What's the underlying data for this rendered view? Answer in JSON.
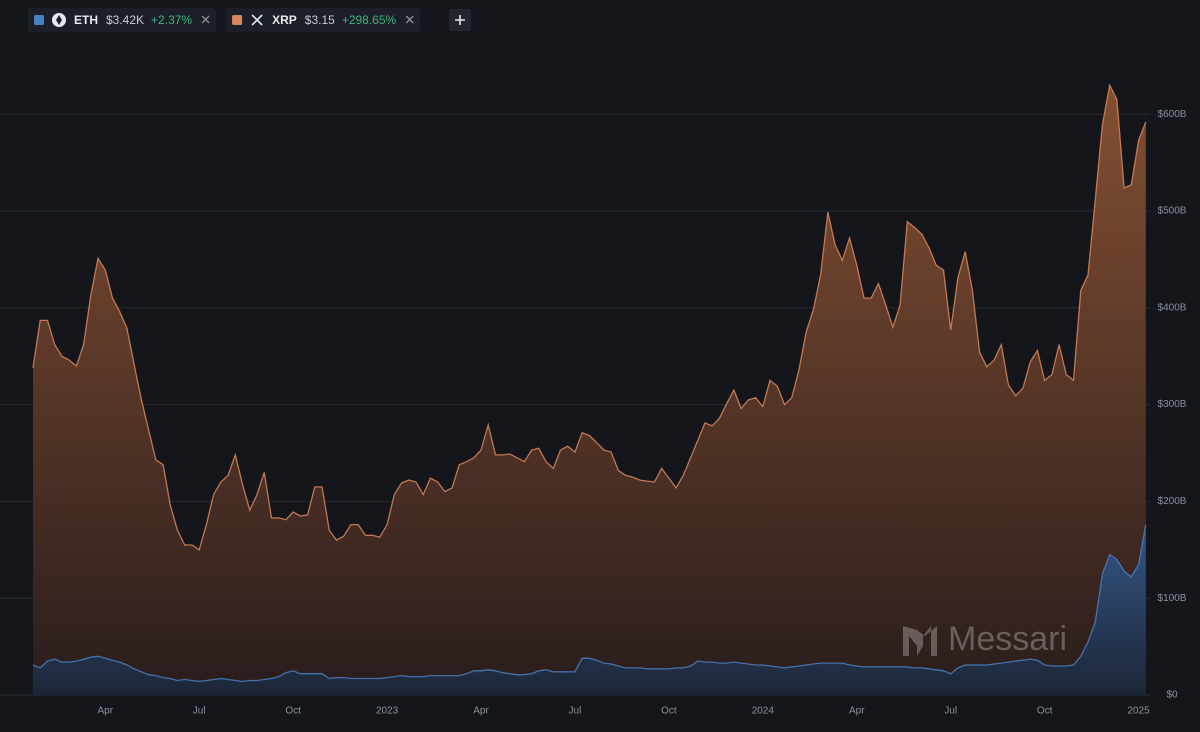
{
  "chart_data": {
    "type": "area",
    "watermark": "Messari",
    "categories": [
      null,
      null,
      null,
      null,
      null,
      null,
      null,
      null,
      null,
      null,
      "Apr",
      null,
      null,
      null,
      null,
      null,
      null,
      null,
      null,
      null,
      null,
      null,
      null,
      "Jul",
      null,
      null,
      null,
      null,
      null,
      null,
      null,
      null,
      null,
      null,
      null,
      null,
      "Oct",
      null,
      null,
      null,
      null,
      null,
      null,
      null,
      null,
      null,
      null,
      null,
      null,
      "2023",
      null,
      null,
      null,
      null,
      null,
      null,
      null,
      null,
      null,
      null,
      null,
      null,
      "Apr",
      null,
      null,
      null,
      null,
      null,
      null,
      null,
      null,
      null,
      null,
      null,
      null,
      "Jul",
      null,
      null,
      null,
      null,
      null,
      null,
      null,
      null,
      null,
      null,
      null,
      null,
      "Oct",
      null,
      null,
      null,
      null,
      null,
      null,
      null,
      null,
      null,
      null,
      null,
      null,
      "2024",
      null,
      null,
      null,
      null,
      null,
      null,
      null,
      null,
      null,
      null,
      null,
      null,
      "Apr",
      null,
      null,
      null,
      null,
      null,
      null,
      null,
      null,
      null,
      null,
      null,
      null,
      "Jul",
      null,
      null,
      null,
      null,
      null,
      null,
      null,
      null,
      null,
      null,
      null,
      null,
      "Oct",
      null,
      null,
      null,
      null,
      null,
      null,
      null,
      null,
      null,
      null,
      null,
      null,
      "2025",
      null
    ],
    "series": [
      {
        "name": "XRP",
        "price": "$3.15",
        "change": "+298.65%",
        "color": "#d9875a",
        "values": [
          338,
          387,
          387,
          362,
          350,
          346,
          340,
          362,
          413,
          451,
          439,
          410,
          396,
          379,
          341,
          305,
          274,
          243,
          238,
          196,
          170,
          155,
          155,
          150,
          176,
          207,
          220,
          227,
          248,
          217,
          191,
          207,
          230,
          183,
          183,
          181,
          189,
          185,
          186,
          215,
          215,
          170,
          160,
          164,
          176,
          176,
          165,
          165,
          163,
          176,
          207,
          219,
          222,
          220,
          207,
          224,
          220,
          210,
          214,
          238,
          241,
          245,
          253,
          279,
          248,
          248,
          249,
          245,
          241,
          253,
          255,
          241,
          234,
          253,
          257,
          251,
          271,
          268,
          261,
          253,
          251,
          232,
          227,
          225,
          222,
          221,
          220,
          234,
          224,
          214,
          227,
          245,
          263,
          281,
          278,
          286,
          301,
          315,
          296,
          305,
          307,
          298,
          325,
          319,
          300,
          307,
          336,
          375,
          398,
          434,
          499,
          465,
          449,
          472,
          444,
          410,
          410,
          425,
          403,
          380,
          403,
          489,
          483,
          476,
          462,
          444,
          439,
          377,
          431,
          458,
          418,
          354,
          339,
          346,
          362,
          320,
          309,
          317,
          344,
          356,
          325,
          331,
          362,
          331,
          325,
          418,
          434,
          511,
          589,
          630,
          615,
          524,
          527,
          573,
          592
        ]
      },
      {
        "name": "ETH",
        "price": "$3.42K",
        "change": "+2.37%",
        "color": "#4a7fc1",
        "values": [
          31,
          28,
          35,
          37,
          34,
          34,
          35,
          37,
          39,
          40,
          38,
          36,
          34,
          31,
          27,
          24,
          21,
          20,
          18,
          17,
          15,
          16,
          15,
          14,
          15,
          16,
          17,
          16,
          15,
          14,
          15,
          15,
          16,
          17,
          19,
          23,
          25,
          22,
          22,
          22,
          22,
          17,
          18,
          18,
          17,
          17,
          17,
          17,
          17,
          18,
          19,
          20,
          19,
          19,
          19,
          20,
          20,
          20,
          20,
          20,
          22,
          25,
          25,
          26,
          25,
          23,
          22,
          21,
          21,
          22,
          25,
          26,
          24,
          24,
          24,
          24,
          38,
          38,
          36,
          33,
          32,
          30,
          28,
          28,
          28,
          27,
          27,
          27,
          27,
          28,
          28,
          30,
          35,
          34,
          34,
          33,
          33,
          34,
          33,
          32,
          31,
          31,
          30,
          29,
          28,
          29,
          30,
          31,
          32,
          33,
          33,
          33,
          33,
          31,
          30,
          29,
          29,
          29,
          29,
          29,
          29,
          29,
          28,
          28,
          27,
          26,
          25,
          22,
          28,
          31,
          31,
          31,
          31,
          32,
          33,
          34,
          35,
          36,
          37,
          36,
          31,
          30,
          30,
          30,
          31,
          40,
          55,
          75,
          125,
          145,
          140,
          128,
          122,
          135,
          176
        ]
      }
    ],
    "ylim": [
      0,
      680
    ],
    "yticks": [
      {
        "value": 0,
        "label": "$0"
      },
      {
        "value": 100,
        "label": "$100B"
      },
      {
        "value": 200,
        "label": "$200B"
      },
      {
        "value": 300,
        "label": "$300B"
      },
      {
        "value": 400,
        "label": "$400B"
      },
      {
        "value": 500,
        "label": "$500B"
      },
      {
        "value": 600,
        "label": "$600B"
      }
    ],
    "grid": true
  }
}
